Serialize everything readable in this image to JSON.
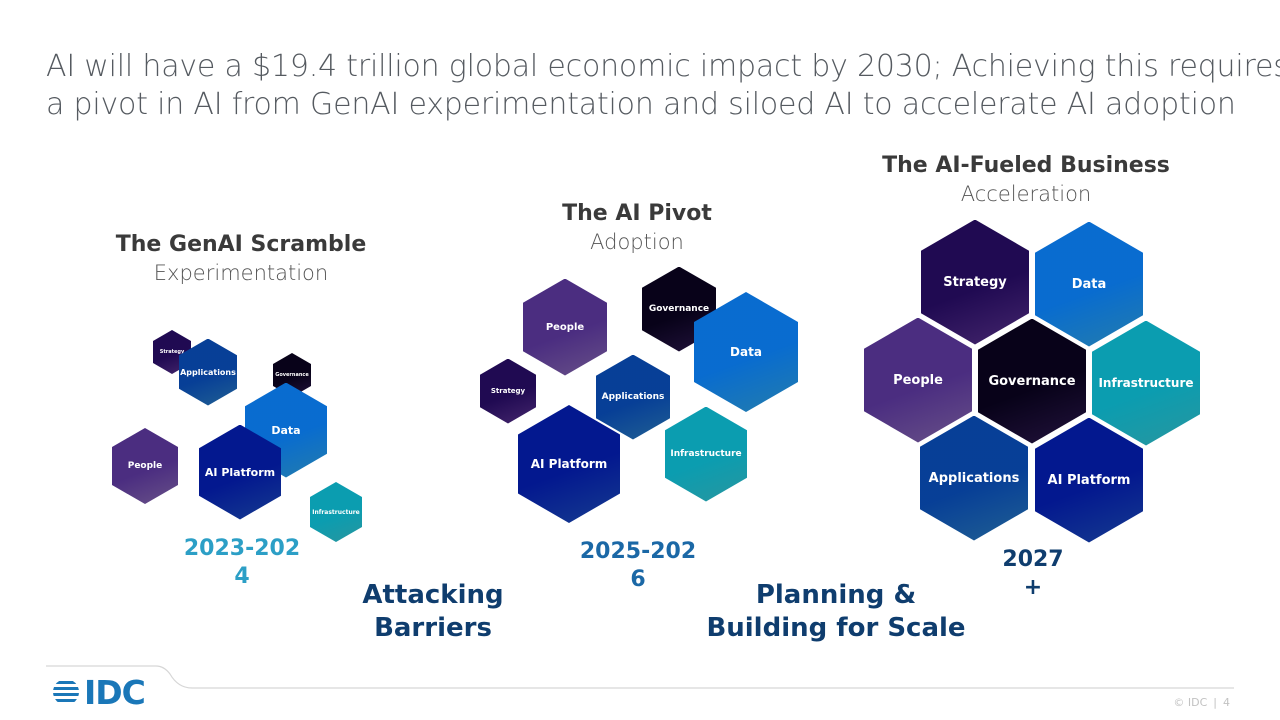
{
  "title": {
    "line1": "AI will have a $19.4 trillion global economic impact by 2030; Achieving this requires",
    "line2": "a pivot in AI from GenAI experimentation and siloed AI to accelerate AI adoption"
  },
  "stages": [
    {
      "name": "The GenAI Scramble",
      "sub": "Experimentation",
      "year": "2023-202\n4",
      "year_color": "#2c9fc6"
    },
    {
      "name": "The AI Pivot",
      "sub": "Adoption",
      "year": "2025-202\n6",
      "year_color": "#1b68a6"
    },
    {
      "name": "The AI-Fueled Business",
      "sub": "Acceleration",
      "year": "2027\n+",
      "year_color": "#0f3d6e"
    }
  ],
  "phases": [
    {
      "label": "Attacking\nBarriers"
    },
    {
      "label": "Planning &\nBuilding for Scale"
    }
  ],
  "hex_labels": {
    "strategy": "Strategy",
    "applications": "Applications",
    "governance": "Governance",
    "data": "Data",
    "people": "People",
    "ai_platform": "AI Platform",
    "infrastructure": "Infrastructure"
  },
  "colors": {
    "strategy": "#5b3391",
    "applications": "#2b7fc4",
    "governance": "#2d1850",
    "data": "#2fa6e6",
    "people": "#8a6bb5",
    "ai_platform": "#1d4fbf",
    "infrastructure": "#35c8d4",
    "year_blue": "#2c9fc6",
    "navy": "#0f3d6e"
  },
  "footer": {
    "logo": "IDC",
    "copyright": "© IDC",
    "page_number": "4"
  }
}
